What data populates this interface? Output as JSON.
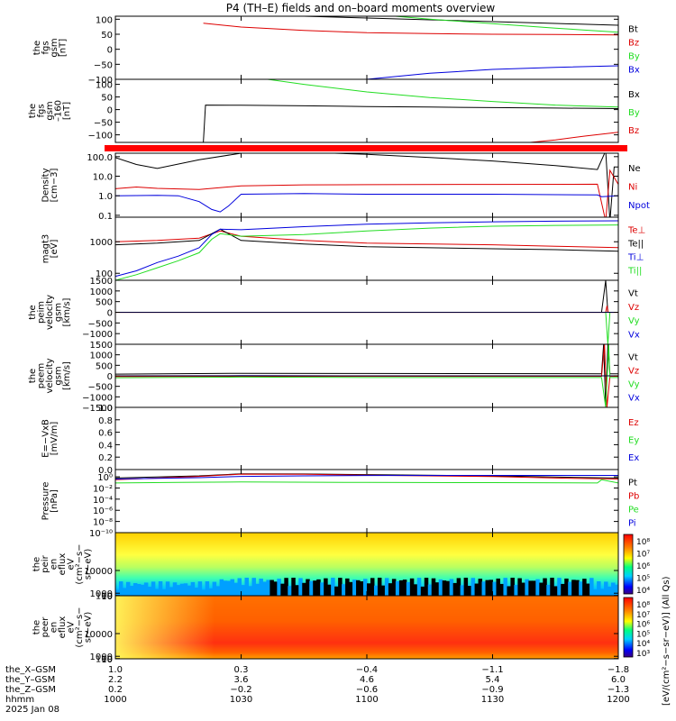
{
  "title": "P4 (TH–E) fields and on–board moments overview",
  "colors": {
    "black": "#000000",
    "red": "#dd0000",
    "green": "#22dd22",
    "blue": "#0000dd",
    "axis": "#000000"
  },
  "chart_data": [
    {
      "type": "line",
      "ylabel_lines": [
        "the",
        "fgs",
        "gsm",
        "[nT]"
      ],
      "yticks": [
        {
          "v": 100,
          "label": "100"
        },
        {
          "v": 50,
          "label": "50"
        },
        {
          "v": 0,
          "label": "0"
        },
        {
          "v": -50,
          "label": "−50"
        },
        {
          "v": -100,
          "label": "−100"
        }
      ],
      "ylim": [
        -100,
        110
      ],
      "series": [
        {
          "name": "Bt",
          "color": "black",
          "x": [
            1021,
            1030,
            1045,
            1100,
            1115,
            1130,
            1145,
            1200
          ],
          "y": [
            120,
            116,
            110,
            104,
            98,
            92,
            86,
            80
          ]
        },
        {
          "name": "Bz",
          "color": "red",
          "x": [
            1021,
            1030,
            1045,
            1100,
            1115,
            1130,
            1145,
            1200
          ],
          "y": [
            87,
            74,
            63,
            55,
            52,
            50,
            49,
            48
          ]
        },
        {
          "name": "By",
          "color": "green",
          "x": [
            1021,
            1100,
            1115,
            1130,
            1145,
            1200
          ],
          "y": [
            130,
            118,
            100,
            85,
            70,
            57
          ]
        },
        {
          "name": "Bx",
          "color": "blue",
          "x": [
            1055,
            1100,
            1115,
            1130,
            1145,
            1200
          ],
          "y": [
            -105,
            -100,
            -80,
            -67,
            -60,
            -55
          ]
        }
      ]
    },
    {
      "type": "line",
      "ylabel_lines": [
        "the",
        "fgs",
        "gsm",
        "–160",
        "[nT]"
      ],
      "yticks": [
        {
          "v": 100,
          "label": "100"
        },
        {
          "v": 50,
          "label": "50"
        },
        {
          "v": 0,
          "label": "0"
        },
        {
          "v": -50,
          "label": "−50"
        },
        {
          "v": -100,
          "label": "−100"
        }
      ],
      "ylim": [
        -130,
        120
      ],
      "series": [
        {
          "name": "Bx",
          "color": "black",
          "x": [
            1021,
            1021.5,
            1030,
            1045,
            1100,
            1115,
            1130,
            1145,
            1200
          ],
          "y": [
            -130,
            18,
            17,
            15,
            12,
            10,
            8,
            6,
            4
          ]
        },
        {
          "name": "By",
          "color": "green",
          "x": [
            1032,
            1045,
            1100,
            1115,
            1130,
            1145,
            1200
          ],
          "y": [
            130,
            100,
            70,
            48,
            32,
            18,
            10
          ]
        },
        {
          "name": "Bz",
          "color": "red",
          "x": [
            1139,
            1145,
            1152,
            1200
          ],
          "y": [
            -130,
            -120,
            -105,
            -90
          ]
        }
      ]
    },
    {
      "type": "bar-strip",
      "note": "red status bar"
    },
    {
      "type": "line",
      "yscale": "log",
      "ylabel_lines": [
        "Density",
        "[cm−3]"
      ],
      "yticks": [
        {
          "v": 100,
          "label": "100.0"
        },
        {
          "v": 10,
          "label": "10.0"
        },
        {
          "v": 1,
          "label": "1.0"
        },
        {
          "v": 0.1,
          "label": "0.1"
        }
      ],
      "ylim": [
        0.08,
        150
      ],
      "series": [
        {
          "name": "Ne",
          "color": "black",
          "x": [
            1000,
            1005,
            1010,
            1020,
            1030,
            1045,
            1100,
            1115,
            1130,
            1145,
            1155,
            1157,
            1158,
            1159,
            1200
          ],
          "y": [
            90,
            40,
            25,
            70,
            150,
            170,
            130,
            90,
            60,
            35,
            22,
            200,
            0.05,
            30,
            30
          ]
        },
        {
          "name": "Ni",
          "color": "red",
          "x": [
            1000,
            1005,
            1010,
            1020,
            1030,
            1045,
            1100,
            1130,
            1155,
            1157,
            1158,
            1200
          ],
          "y": [
            2.3,
            2.8,
            2.4,
            2.1,
            3.2,
            3.6,
            3.7,
            3.8,
            3.9,
            0.05,
            20,
            3.8
          ]
        },
        {
          "name": "Npot",
          "color": "blue",
          "x": [
            1000,
            1010,
            1015,
            1020,
            1023,
            1025,
            1027,
            1030,
            1045,
            1100,
            1130,
            1155,
            1156,
            1200
          ],
          "y": [
            1.0,
            1.05,
            1.0,
            0.5,
            0.2,
            0.15,
            0.3,
            1.2,
            1.3,
            1.2,
            1.2,
            1.1,
            0.9,
            1.0
          ]
        }
      ]
    },
    {
      "type": "line",
      "yscale": "log",
      "ylabel_lines": [
        "magt3",
        "[eV]"
      ],
      "yticks": [
        {
          "v": 1000,
          "label": "1000"
        },
        {
          "v": 100,
          "label": "100"
        }
      ],
      "ylim": [
        60,
        6000
      ],
      "series": [
        {
          "name": "Te⊥",
          "color": "red",
          "x": [
            1000,
            1010,
            1020,
            1025,
            1030,
            1045,
            1100,
            1130,
            1145,
            1200
          ],
          "y": [
            1000,
            1100,
            1300,
            2200,
            1500,
            1100,
            900,
            800,
            720,
            650
          ]
        },
        {
          "name": "Te||",
          "color": "black",
          "x": [
            1000,
            1010,
            1020,
            1025,
            1030,
            1045,
            1100,
            1130,
            1145,
            1200
          ],
          "y": [
            800,
            900,
            1100,
            2500,
            1100,
            850,
            700,
            600,
            560,
            500
          ]
        },
        {
          "name": "Ti⊥",
          "color": "blue",
          "x": [
            1000,
            1005,
            1010,
            1015,
            1020,
            1023,
            1025,
            1030,
            1045,
            1100,
            1115,
            1130,
            1145,
            1200
          ],
          "y": [
            80,
            120,
            220,
            350,
            650,
            1700,
            2500,
            2400,
            3000,
            3600,
            4000,
            4300,
            4500,
            4600
          ]
        },
        {
          "name": "Ti||",
          "color": "green",
          "x": [
            1000,
            1005,
            1010,
            1015,
            1020,
            1023,
            1025,
            1030,
            1045,
            1100,
            1115,
            1130,
            1145,
            1200
          ],
          "y": [
            60,
            90,
            150,
            250,
            450,
            1200,
            1800,
            1500,
            1700,
            2200,
            2700,
            3100,
            3300,
            3400
          ]
        }
      ]
    },
    {
      "type": "line",
      "ylabel_lines": [
        "the",
        "peim",
        "velocity",
        "gsm",
        "[km/s]"
      ],
      "yticks": [
        {
          "v": 1500,
          "label": "1500"
        },
        {
          "v": 1000,
          "label": "1000"
        },
        {
          "v": 500,
          "label": "500"
        },
        {
          "v": 0,
          "label": "0"
        },
        {
          "v": -500,
          "label": "−500"
        },
        {
          "v": -1000,
          "label": "−1000"
        }
      ],
      "ylim": [
        -1500,
        1500
      ],
      "series": [
        {
          "name": "Vt",
          "color": "black",
          "x": [
            1000,
            1156,
            1157,
            1157.5,
            1158,
            1200
          ],
          "y": [
            2,
            2,
            1500,
            0,
            2,
            2
          ]
        },
        {
          "name": "Vz",
          "color": "red",
          "x": [
            1000,
            1157,
            1157.3,
            1157.6,
            1200
          ],
          "y": [
            -3,
            -3,
            300,
            -3,
            -3
          ]
        },
        {
          "name": "Vy",
          "color": "green",
          "x": [
            1000,
            1157,
            1157.5,
            1158,
            1200
          ],
          "y": [
            0,
            0,
            -1500,
            0,
            0
          ]
        },
        {
          "name": "Vx",
          "color": "blue",
          "x": [
            1000,
            1200
          ],
          "y": [
            0,
            0
          ]
        }
      ]
    },
    {
      "type": "line",
      "ylabel_lines": [
        "the",
        "peem",
        "velocity",
        "gsm",
        "[km/s]"
      ],
      "yticks": [
        {
          "v": 1500,
          "label": "1500"
        },
        {
          "v": 1000,
          "label": "1000"
        },
        {
          "v": 500,
          "label": "500"
        },
        {
          "v": 0,
          "label": "0"
        },
        {
          "v": -500,
          "label": "−500"
        },
        {
          "v": -1000,
          "label": "−1000"
        },
        {
          "v": -1500,
          "label": "−1500"
        }
      ],
      "ylim": [
        -1500,
        1500
      ],
      "series": [
        {
          "name": "Vt",
          "color": "black",
          "x": [
            1000,
            1030,
            1100,
            1156,
            1156.5,
            1157,
            1157.5,
            1158,
            1200
          ],
          "y": [
            80,
            120,
            110,
            100,
            1500,
            -1500,
            1500,
            100,
            100
          ]
        },
        {
          "name": "Vz",
          "color": "red",
          "x": [
            1000,
            1030,
            1100,
            1156,
            1156.7,
            1157.3,
            1158,
            1200
          ],
          "y": [
            -30,
            -20,
            -20,
            -20,
            1500,
            -1500,
            -20,
            -20
          ]
        },
        {
          "name": "Vy",
          "color": "green",
          "x": [
            1000,
            1030,
            1100,
            1156,
            1157,
            1157.7,
            1158,
            1200
          ],
          "y": [
            -90,
            -60,
            -80,
            -80,
            -1500,
            1500,
            -80,
            -80
          ]
        },
        {
          "name": "Vx",
          "color": "blue",
          "x": [
            1000,
            1030,
            1100,
            1156,
            1200
          ],
          "y": [
            0,
            10,
            0,
            0,
            0
          ]
        }
      ]
    },
    {
      "type": "line",
      "ylabel_lines": [
        "E=−VxB",
        "[mV/m]"
      ],
      "yticks": [
        {
          "v": 1.0,
          "label": "1.0"
        },
        {
          "v": 0.8,
          "label": "0.8"
        },
        {
          "v": 0.6,
          "label": "0.6"
        },
        {
          "v": 0.4,
          "label": "0.4"
        },
        {
          "v": 0.2,
          "label": "0.2"
        },
        {
          "v": 0.0,
          "label": "0.0"
        }
      ],
      "ylim": [
        0,
        1.0
      ],
      "series": [
        {
          "name": "Ez",
          "color": "red",
          "x": [],
          "y": []
        },
        {
          "name": "Ey",
          "color": "green",
          "x": [],
          "y": []
        },
        {
          "name": "Ex",
          "color": "blue",
          "x": [],
          "y": []
        }
      ]
    },
    {
      "type": "line",
      "yscale": "log",
      "ylabel_lines": [
        "Pressure",
        "[nPa]"
      ],
      "yticks": [
        {
          "v": 1,
          "label": "10⁰"
        },
        {
          "v": 0.01,
          "label": "10⁻²"
        },
        {
          "v": 0.0001,
          "label": "10⁻⁴"
        },
        {
          "v": 1e-06,
          "label": "10⁻⁶"
        },
        {
          "v": 1e-08,
          "label": "10⁻⁸"
        },
        {
          "v": 1e-10,
          "label": "10⁻¹⁰"
        }
      ],
      "ylim": [
        1e-10,
        20
      ],
      "series": [
        {
          "name": "Pt",
          "color": "black",
          "x": [
            1000,
            1020,
            1030,
            1045,
            1100,
            1130,
            1145,
            1200
          ],
          "y": [
            0.6,
            1.5,
            3.5,
            3.2,
            2.5,
            1.5,
            0.9,
            0.6
          ]
        },
        {
          "name": "Pb",
          "color": "red",
          "x": [
            1000,
            1020,
            1030,
            1045,
            1100,
            1130,
            1145,
            1200
          ],
          "y": [
            0.3,
            1.2,
            3.0,
            2.8,
            2.0,
            1.1,
            0.6,
            0.4
          ]
        },
        {
          "name": "Pe",
          "color": "green",
          "x": [
            1000,
            1015,
            1030,
            1100,
            1130,
            1155,
            1156,
            1200
          ],
          "y": [
            0.08,
            0.1,
            0.12,
            0.1,
            0.09,
            0.08,
            0.3,
            0.08
          ]
        },
        {
          "name": "Pi",
          "color": "blue",
          "x": [
            1000,
            1020,
            1030,
            1045,
            1100,
            1130,
            1145,
            1200
          ],
          "y": [
            0.4,
            0.7,
            1.2,
            1.5,
            1.7,
            1.8,
            1.8,
            1.8
          ]
        }
      ]
    },
    {
      "type": "heatmap",
      "ylabel_lines": [
        "the",
        "peir",
        "en",
        "eflux",
        "eV",
        "(cm²−s−",
        "sr−eV)"
      ],
      "yticks": [
        {
          "v": 10000,
          "label": "10000"
        },
        {
          "v": 1000,
          "label": "1000"
        },
        {
          "v": 100,
          "label": "100"
        },
        {
          "v": 10,
          "label": "10"
        }
      ],
      "ylim": [
        7,
        25000
      ],
      "colorbar_ticks": [
        "10⁸",
        "10⁷",
        "10⁶",
        "10⁵",
        "10⁴"
      ]
    },
    {
      "type": "heatmap",
      "ylabel_lines": [
        "the",
        "peer",
        "en",
        "eflux",
        "eV",
        "(cm²−s−",
        "sr−eV)"
      ],
      "yticks": [
        {
          "v": 10000,
          "label": "10000"
        },
        {
          "v": 1000,
          "label": "1000"
        },
        {
          "v": 100,
          "label": "100"
        },
        {
          "v": 10,
          "label": "10"
        }
      ],
      "ylim": [
        7,
        25000
      ],
      "colorbar_ticks": [
        "10⁸",
        "10⁷",
        "10⁶",
        "10⁵",
        "10⁴",
        "10³"
      ]
    }
  ],
  "colorbar_label": "[eV/(cm²−s−sr−eV)] (All Qs)",
  "xaxis": {
    "rows": [
      {
        "label": "the_X–GSM",
        "values": [
          "1.0",
          "0.3",
          "−0.4",
          "−1.1",
          "−1.8"
        ]
      },
      {
        "label": "the_Y–GSM",
        "values": [
          "2.2",
          "3.6",
          "4.6",
          "5.4",
          "6.0"
        ]
      },
      {
        "label": "the_Z–GSM",
        "values": [
          "0.2",
          "−0.2",
          "−0.6",
          "−0.9",
          "−1.3"
        ]
      },
      {
        "label": "hhmm",
        "values": [
          "1000",
          "1030",
          "1100",
          "1130",
          "1200"
        ]
      }
    ],
    "date": "2025 Jan 08",
    "tick_times": [
      1000,
      1030,
      1100,
      1130,
      1200
    ]
  }
}
